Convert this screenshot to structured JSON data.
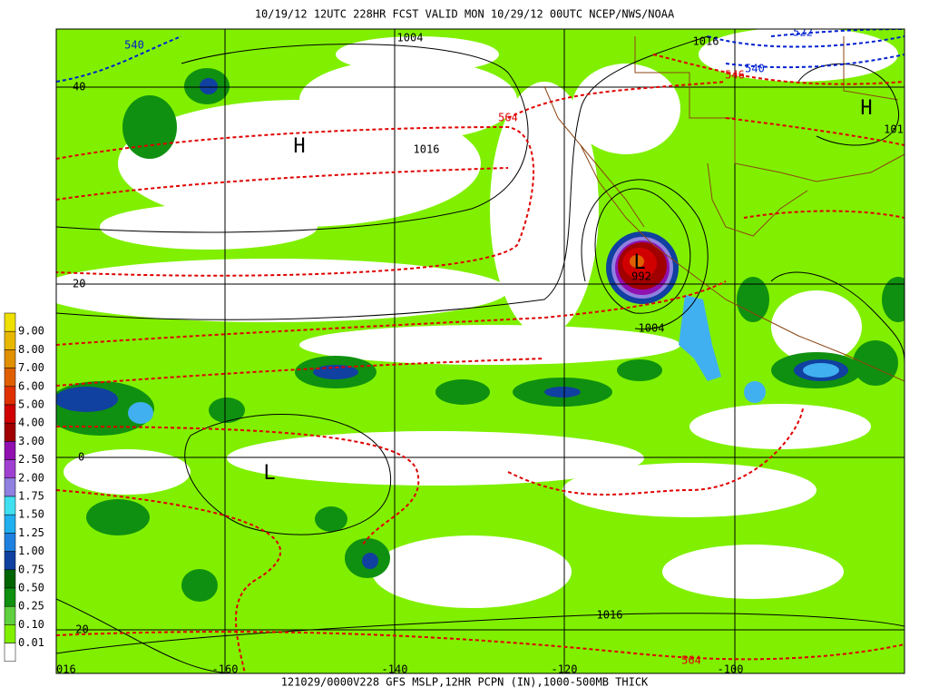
{
  "header": "10/19/12 12UTC  228HR  FCST VALID MON 10/29/12 00UTC  NCEP/NWS/NOAA",
  "footer": "121029/0000V228 GFS MSLP,12HR PCPN (IN),1000-500MB THICK",
  "legend": [
    {
      "label": "9.00",
      "color": "#f0e000"
    },
    {
      "label": "8.00",
      "color": "#e8b800"
    },
    {
      "label": "7.00",
      "color": "#e09000"
    },
    {
      "label": "6.00",
      "color": "#e06000"
    },
    {
      "label": "5.00",
      "color": "#e03000"
    },
    {
      "label": "4.00",
      "color": "#d00000"
    },
    {
      "label": "3.00",
      "color": "#a00000"
    },
    {
      "label": "2.50",
      "color": "#9010b0"
    },
    {
      "label": "2.00",
      "color": "#a040d0"
    },
    {
      "label": "1.75",
      "color": "#9080e0"
    },
    {
      "label": "1.50",
      "color": "#40e0f0"
    },
    {
      "label": "1.25",
      "color": "#20b0f0"
    },
    {
      "label": "1.00",
      "color": "#2080e0"
    },
    {
      "label": "0.75",
      "color": "#1040a0"
    },
    {
      "label": "0.50",
      "color": "#006400"
    },
    {
      "label": "0.25",
      "color": "#109010"
    },
    {
      "label": "0.10",
      "color": "#60d040"
    },
    {
      "label": "0.01",
      "color": "#80f000"
    }
  ],
  "lat_labels": [
    "40",
    "20",
    "0",
    "-20"
  ],
  "lon_labels": [
    "016",
    "-160",
    "-140",
    "-120",
    "-100"
  ],
  "contour_labels": [
    "1004",
    "1016",
    "540",
    "522",
    "540",
    "546",
    "564",
    "1016",
    "101",
    "992",
    "1004",
    "1016",
    "564"
  ],
  "systems": [
    "H",
    "H",
    "L",
    "L"
  ]
}
